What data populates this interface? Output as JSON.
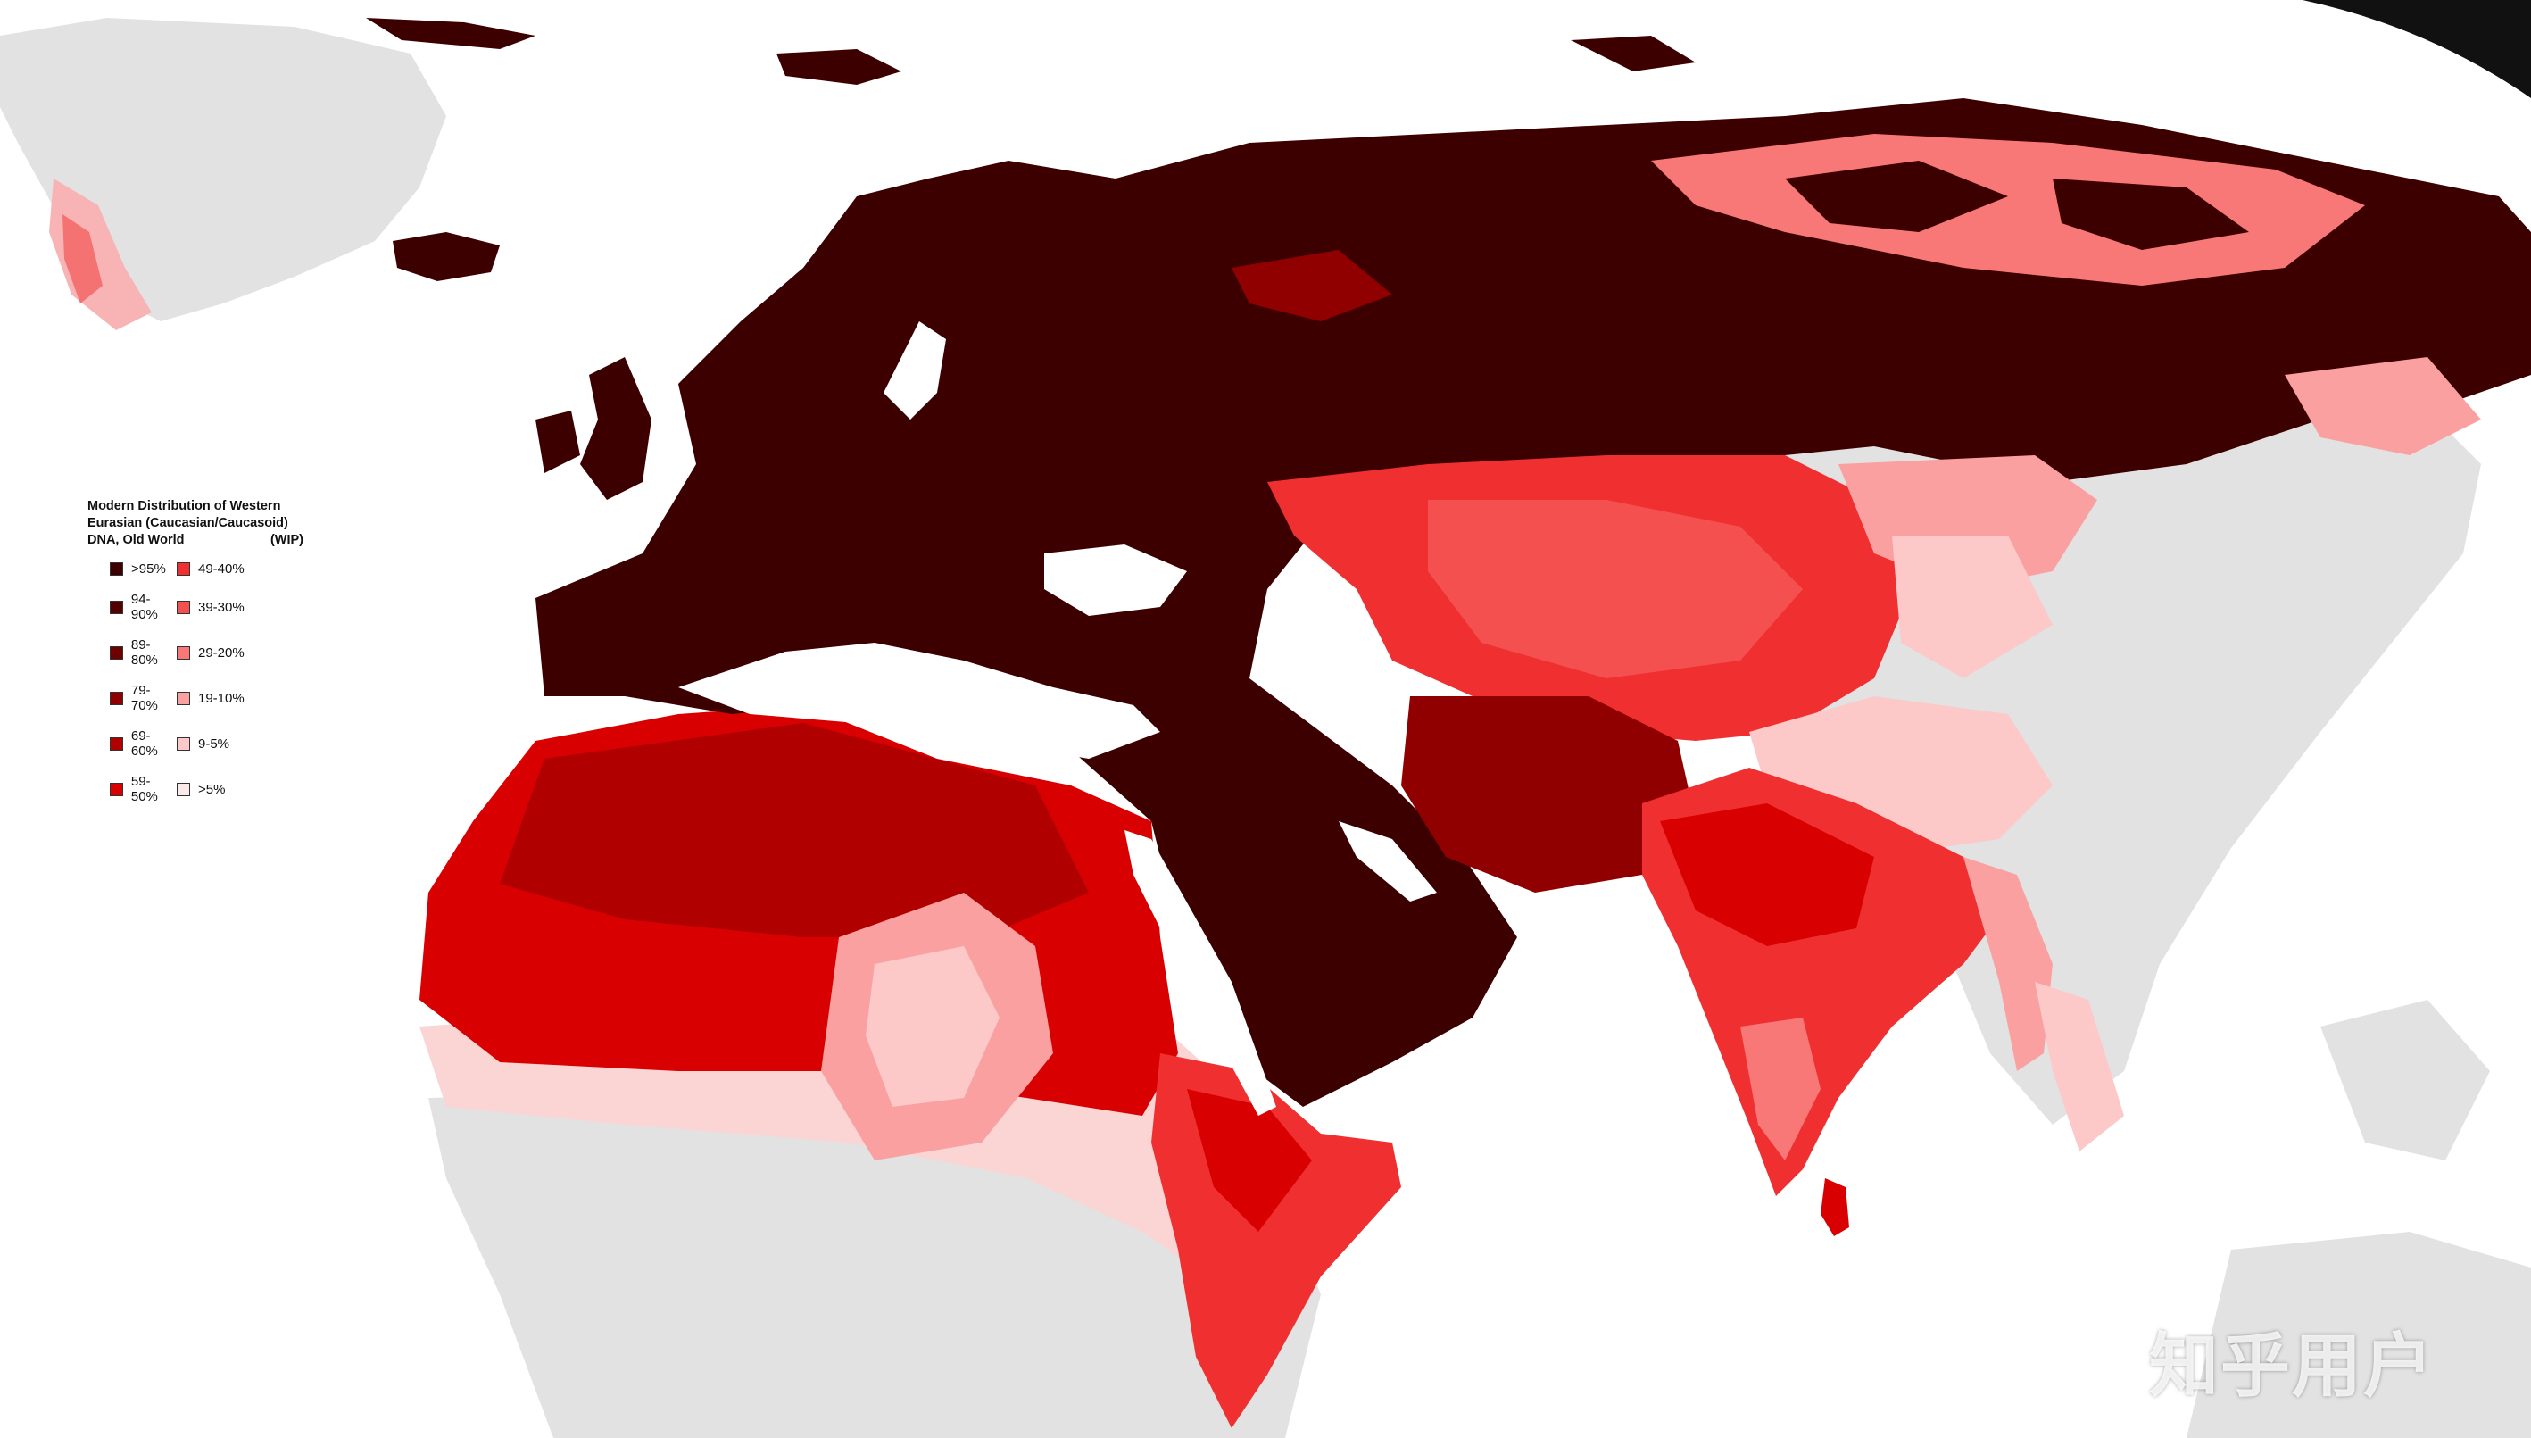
{
  "legend": {
    "title_lines": [
      "Modern Distribution of Western",
      "Eurasian (Caucasian/Caucasoid)",
      "DNA, Old World"
    ],
    "title_suffix": "(WIP)",
    "items": [
      {
        "label": ">95%",
        "color": "#3d0000"
      },
      {
        "label": "49-40%",
        "color": "#f03030"
      },
      {
        "label": "94-90%",
        "color": "#520000"
      },
      {
        "label": "39-30%",
        "color": "#f45050"
      },
      {
        "label": "89-80%",
        "color": "#6e0000"
      },
      {
        "label": "29-20%",
        "color": "#f87878"
      },
      {
        "label": "79-70%",
        "color": "#900000"
      },
      {
        "label": "19-10%",
        "color": "#fba0a0"
      },
      {
        "label": "69-60%",
        "color": "#b00000"
      },
      {
        "label": "9-5%",
        "color": "#fcc8c8"
      },
      {
        "label": "59-50%",
        "color": "#d80000"
      },
      {
        "label": ">5%",
        "color": "#fbeaea"
      }
    ]
  },
  "colors": {
    "land_other": "#e2e2e2",
    "ocean": "#ffffff"
  },
  "watermark": "知乎用户"
}
